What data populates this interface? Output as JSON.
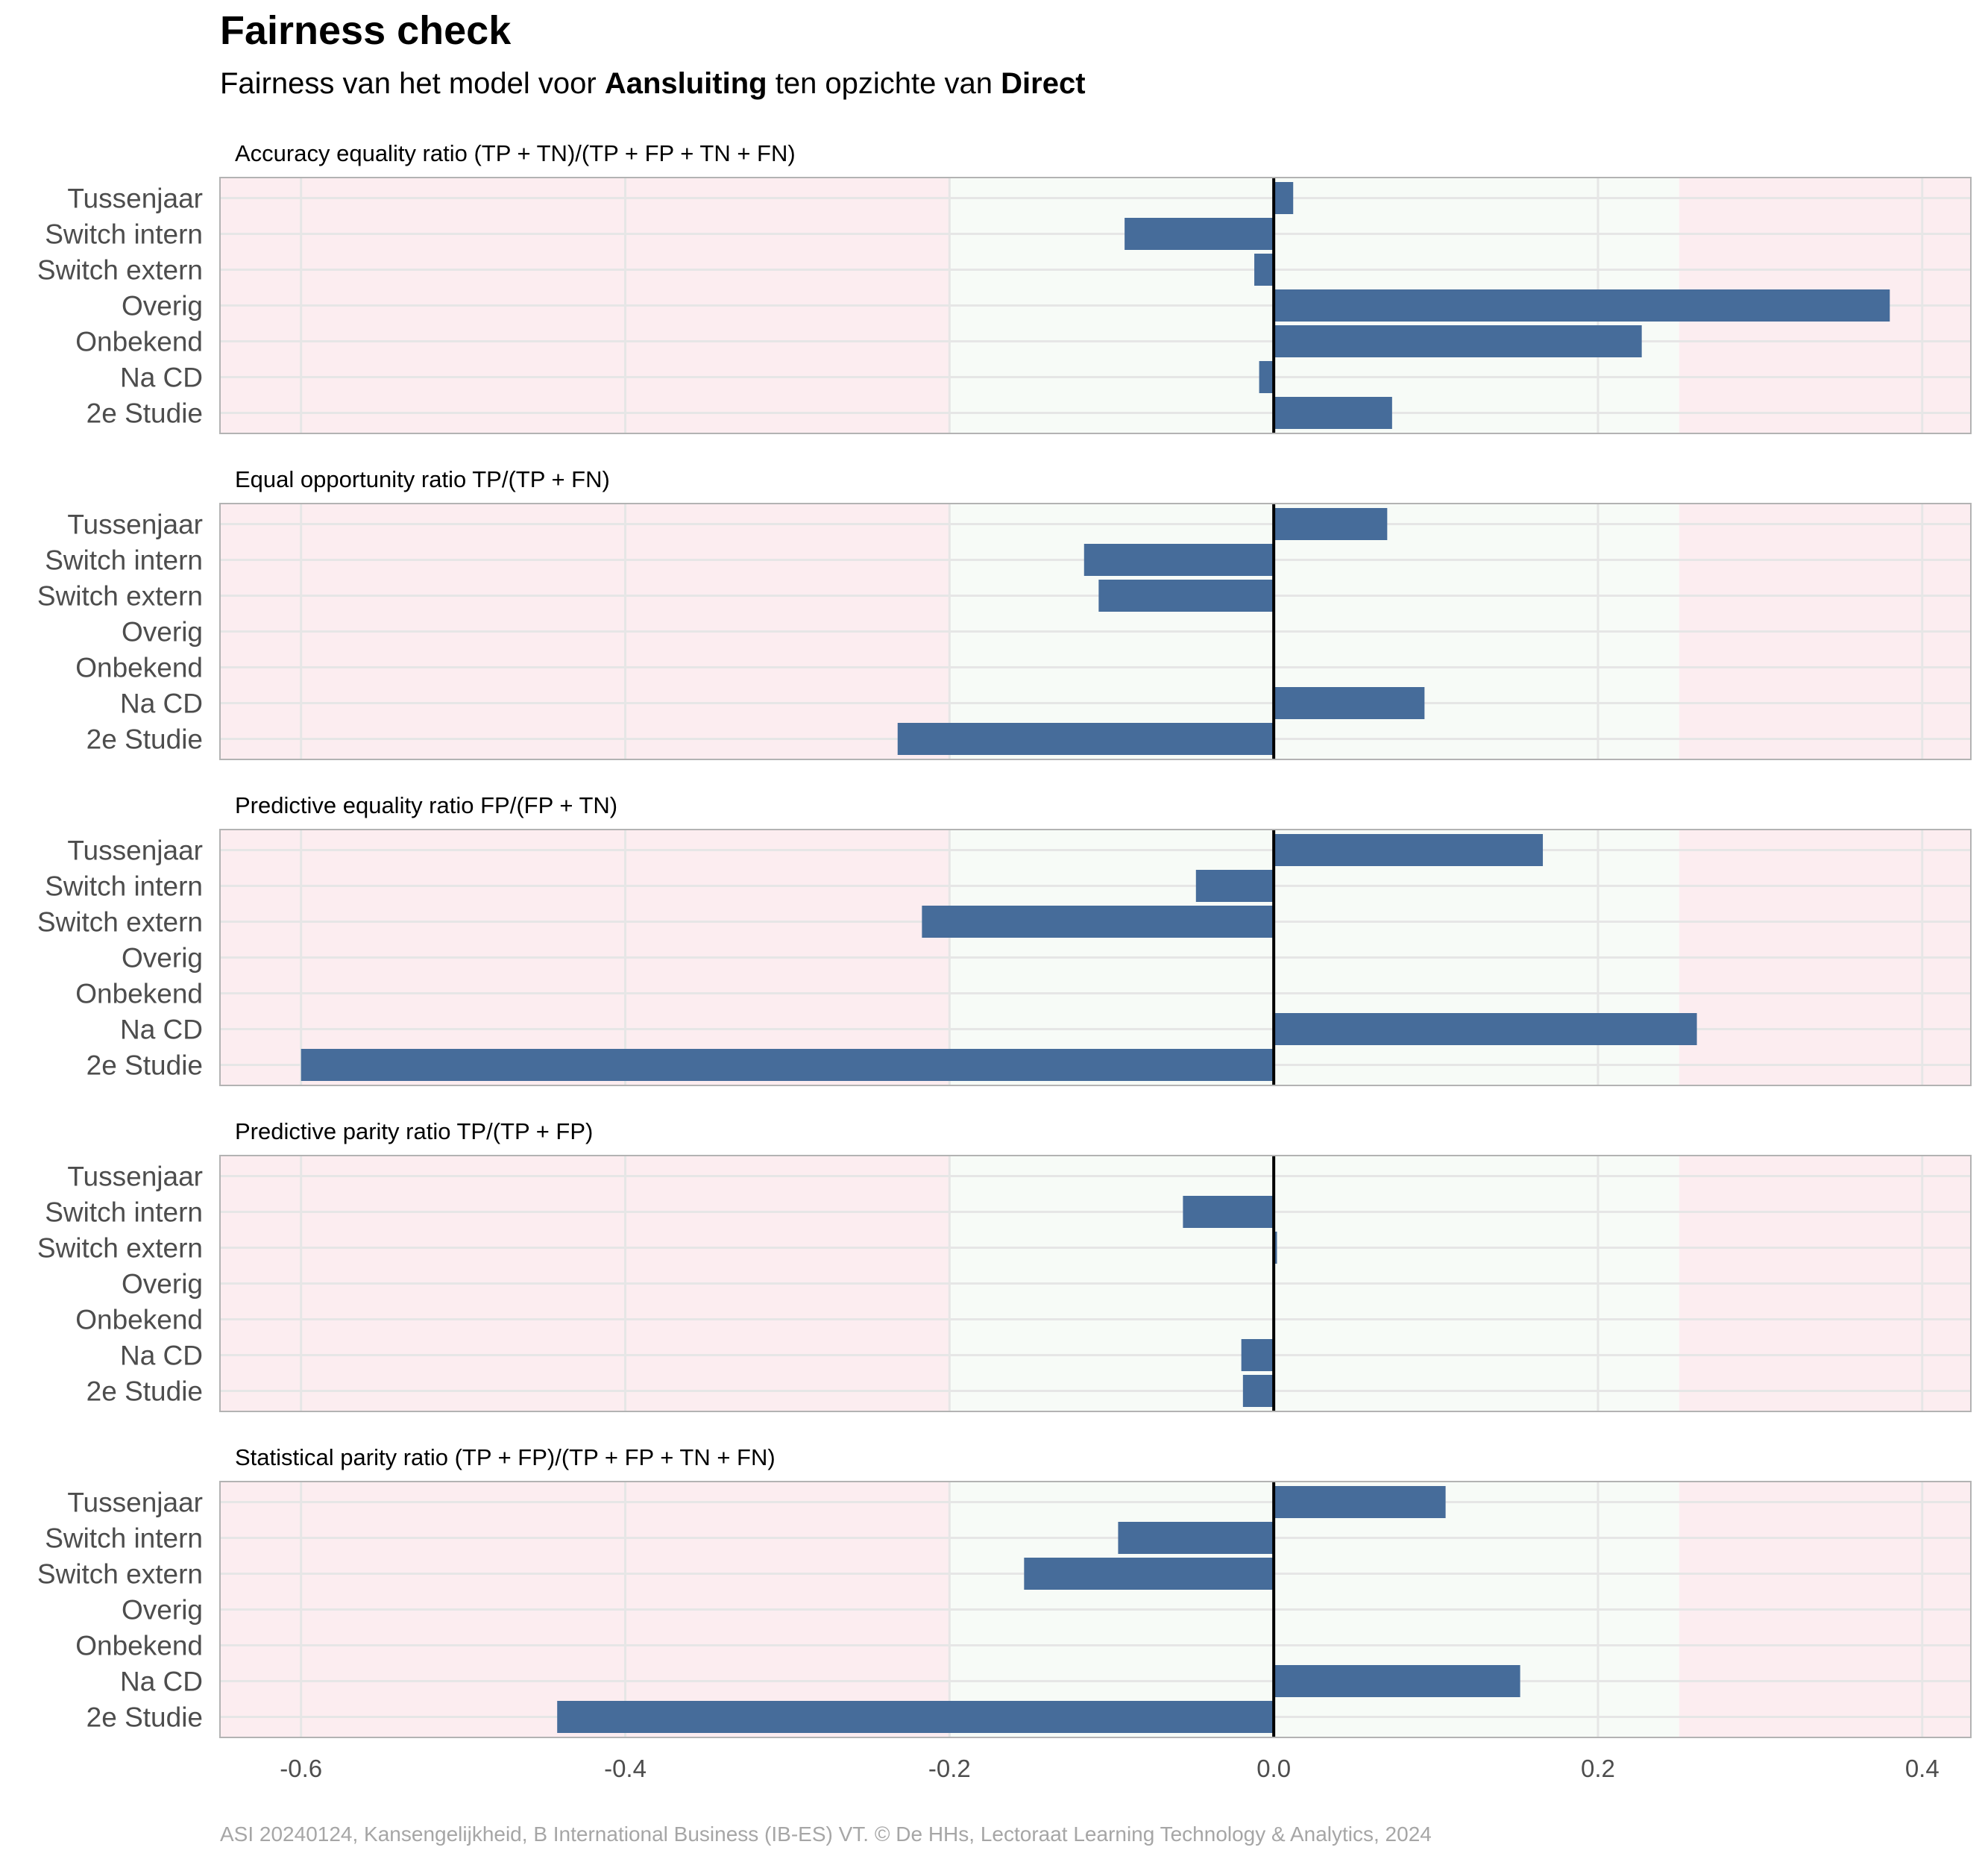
{
  "title": "Fairness check",
  "subtitle": {
    "prefix": "Fairness van het model voor ",
    "group": "Aansluiting",
    "middle": " ten opzichte van ",
    "reference": "Direct"
  },
  "caption": "ASI 20240124, Kansengelijkheid, B International Business (IB-ES) VT. © De HHs, Lectoraat Learning Technology & Analytics, 2024",
  "colors": {
    "bar": "#466c9a",
    "fair_zone": "#f7fbf7",
    "unfair_zone": "#fcedf0",
    "grid": "#e6e6e6",
    "zero_line": "#000000",
    "panel_border": "#b3b3b3"
  },
  "chart_data": {
    "type": "bar",
    "orientation": "horizontal",
    "categories": [
      "Tussenjaar",
      "Switch intern",
      "Switch extern",
      "Overig",
      "Onbekend",
      "Na CD",
      "2e Studie"
    ],
    "xlim": [
      -0.65,
      0.43
    ],
    "x_ticks": [
      -0.6,
      -0.4,
      -0.2,
      0.0,
      0.2,
      0.4
    ],
    "x_tick_labels": [
      "-0.6",
      "-0.4",
      "-0.2",
      "0.0",
      "0.2",
      "0.4"
    ],
    "fair_range": [
      -0.2,
      0.25
    ],
    "grid": true,
    "legend": "none",
    "panels": [
      {
        "title": "Accuracy equality ratio    (TP + TN)/(TP + FP + TN + FN)",
        "values": [
          0.012,
          -0.092,
          -0.012,
          0.38,
          0.227,
          -0.009,
          0.073
        ]
      },
      {
        "title": "Equal opportunity ratio     TP/(TP + FN)",
        "values": [
          0.07,
          -0.117,
          -0.108,
          null,
          null,
          0.093,
          -0.232
        ]
      },
      {
        "title": "Predictive equality ratio   FP/(FP + TN)",
        "values": [
          0.166,
          -0.048,
          -0.217,
          null,
          null,
          0.261,
          -0.6
        ]
      },
      {
        "title": "Predictive parity ratio     TP/(TP + FP)",
        "values": [
          null,
          -0.056,
          0.002,
          null,
          null,
          -0.02,
          -0.019
        ]
      },
      {
        "title": "Statistical parity ratio   (TP + FP)/(TP + FP + TN + FN)",
        "values": [
          0.106,
          -0.096,
          -0.154,
          null,
          null,
          0.152,
          -0.442
        ]
      }
    ]
  }
}
